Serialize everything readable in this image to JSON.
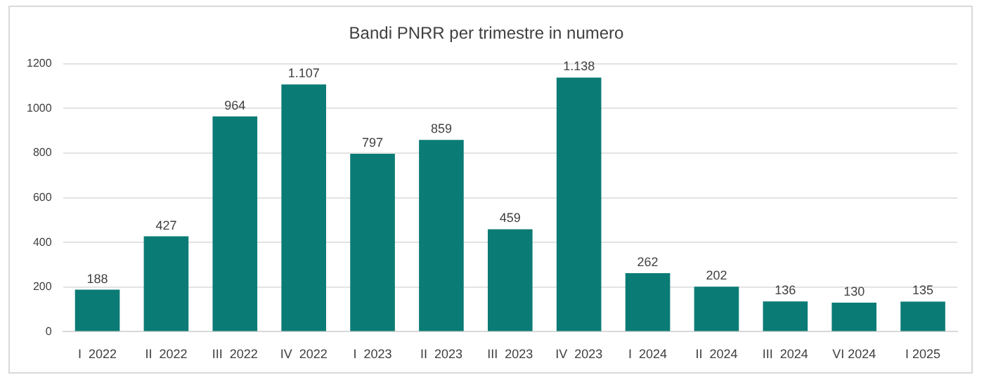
{
  "chart_data": {
    "type": "bar",
    "title": "Bandi PNRR per trimestre in numero",
    "categories": [
      "I  2022",
      "II  2022",
      "III  2022",
      "IV  2022",
      "I  2023",
      "II  2023",
      "III  2023",
      "IV  2023",
      "I  2024",
      "II  2024",
      "III  2024",
      "VI 2024",
      "I 2025"
    ],
    "values": [
      188,
      427,
      964,
      1107,
      797,
      859,
      459,
      1138,
      262,
      202,
      136,
      130,
      135
    ],
    "value_labels": [
      "188",
      "427",
      "964",
      "1.107",
      "797",
      "859",
      "459",
      "1.138",
      "262",
      "202",
      "136",
      "130",
      "135"
    ],
    "color": "#0b7b75",
    "ylim": [
      0,
      1200
    ],
    "yticks": [
      0,
      200,
      400,
      600,
      800,
      1000,
      1200
    ],
    "grid": "y"
  }
}
